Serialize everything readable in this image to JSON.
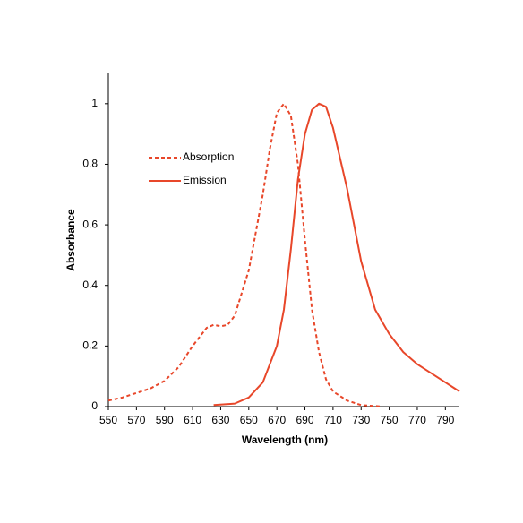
{
  "chart_data": {
    "type": "line",
    "x_label": "Wavelength (nm)",
    "y_label": "Absorbance",
    "xlim": [
      550,
      800
    ],
    "xticks": [
      550,
      570,
      590,
      610,
      630,
      650,
      670,
      690,
      710,
      730,
      750,
      770,
      790
    ],
    "ylim": [
      0,
      1.1
    ],
    "yticks": [
      0,
      0.2,
      0.4,
      0.6,
      0.8,
      1
    ],
    "grid": false,
    "legend": "upper left",
    "series": [
      {
        "name": "Absorption",
        "color": "#e8472a",
        "dash": true,
        "x": [
          550,
          560,
          570,
          580,
          590,
          600,
          610,
          620,
          625,
          630,
          635,
          640,
          650,
          660,
          665,
          670,
          675,
          680,
          685,
          690,
          695,
          700,
          705,
          710,
          720,
          730,
          740,
          745
        ],
        "values": [
          0.02,
          0.03,
          0.045,
          0.06,
          0.085,
          0.13,
          0.2,
          0.26,
          0.27,
          0.265,
          0.27,
          0.3,
          0.45,
          0.7,
          0.85,
          0.97,
          1.0,
          0.96,
          0.8,
          0.55,
          0.32,
          0.18,
          0.09,
          0.05,
          0.02,
          0.005,
          0.002,
          0
        ]
      },
      {
        "name": "Emission",
        "color": "#e8472a",
        "dash": false,
        "x": [
          625,
          640,
          650,
          660,
          670,
          675,
          680,
          685,
          690,
          695,
          700,
          705,
          710,
          720,
          730,
          740,
          750,
          760,
          770,
          780,
          790,
          800
        ],
        "values": [
          0.005,
          0.01,
          0.03,
          0.08,
          0.2,
          0.32,
          0.52,
          0.75,
          0.9,
          0.98,
          1.0,
          0.99,
          0.92,
          0.72,
          0.48,
          0.32,
          0.24,
          0.18,
          0.14,
          0.11,
          0.08,
          0.05
        ]
      }
    ]
  }
}
